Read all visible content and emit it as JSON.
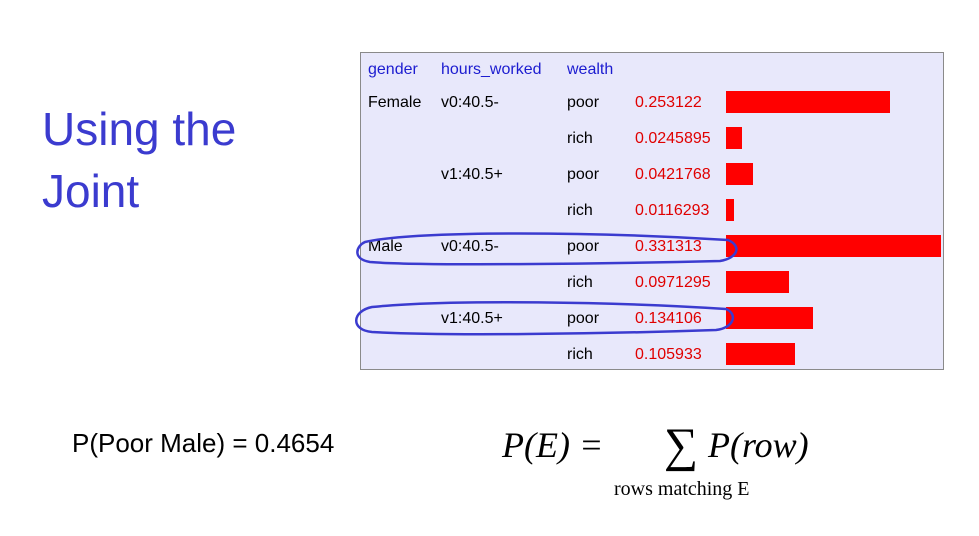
{
  "slide": {
    "title_line1": "Using the",
    "title_line2": "Joint"
  },
  "table": {
    "headers": [
      "gender",
      "hours_worked",
      "wealth"
    ],
    "rows": [
      {
        "gender": "Female",
        "hours": "v0:40.5-",
        "wealth": "poor",
        "p": "0.253122",
        "value": 0.253122
      },
      {
        "gender": "",
        "hours": "",
        "wealth": "rich",
        "p": "0.0245895",
        "value": 0.0245895
      },
      {
        "gender": "",
        "hours": "v1:40.5+",
        "wealth": "poor",
        "p": "0.0421768",
        "value": 0.0421768
      },
      {
        "gender": "",
        "hours": "",
        "wealth": "rich",
        "p": "0.0116293",
        "value": 0.0116293
      },
      {
        "gender": "Male",
        "hours": "v0:40.5-",
        "wealth": "poor",
        "p": "0.331313",
        "value": 0.331313
      },
      {
        "gender": "",
        "hours": "",
        "wealth": "rich",
        "p": "0.0971295",
        "value": 0.0971295
      },
      {
        "gender": "",
        "hours": "v1:40.5+",
        "wealth": "poor",
        "p": "0.134106",
        "value": 0.134106
      },
      {
        "gender": "",
        "hours": "",
        "wealth": "rich",
        "p": "0.105933",
        "value": 0.105933
      }
    ],
    "bar_color": "#ff0000",
    "highlight_color": "#3b3bcf"
  },
  "result": {
    "text": "P(Poor Male) = 0.4654"
  },
  "equation": {
    "lhs": "P(E) =",
    "sigma": "∑",
    "rhs": "P(row)",
    "subscript": "rows matching E"
  }
}
